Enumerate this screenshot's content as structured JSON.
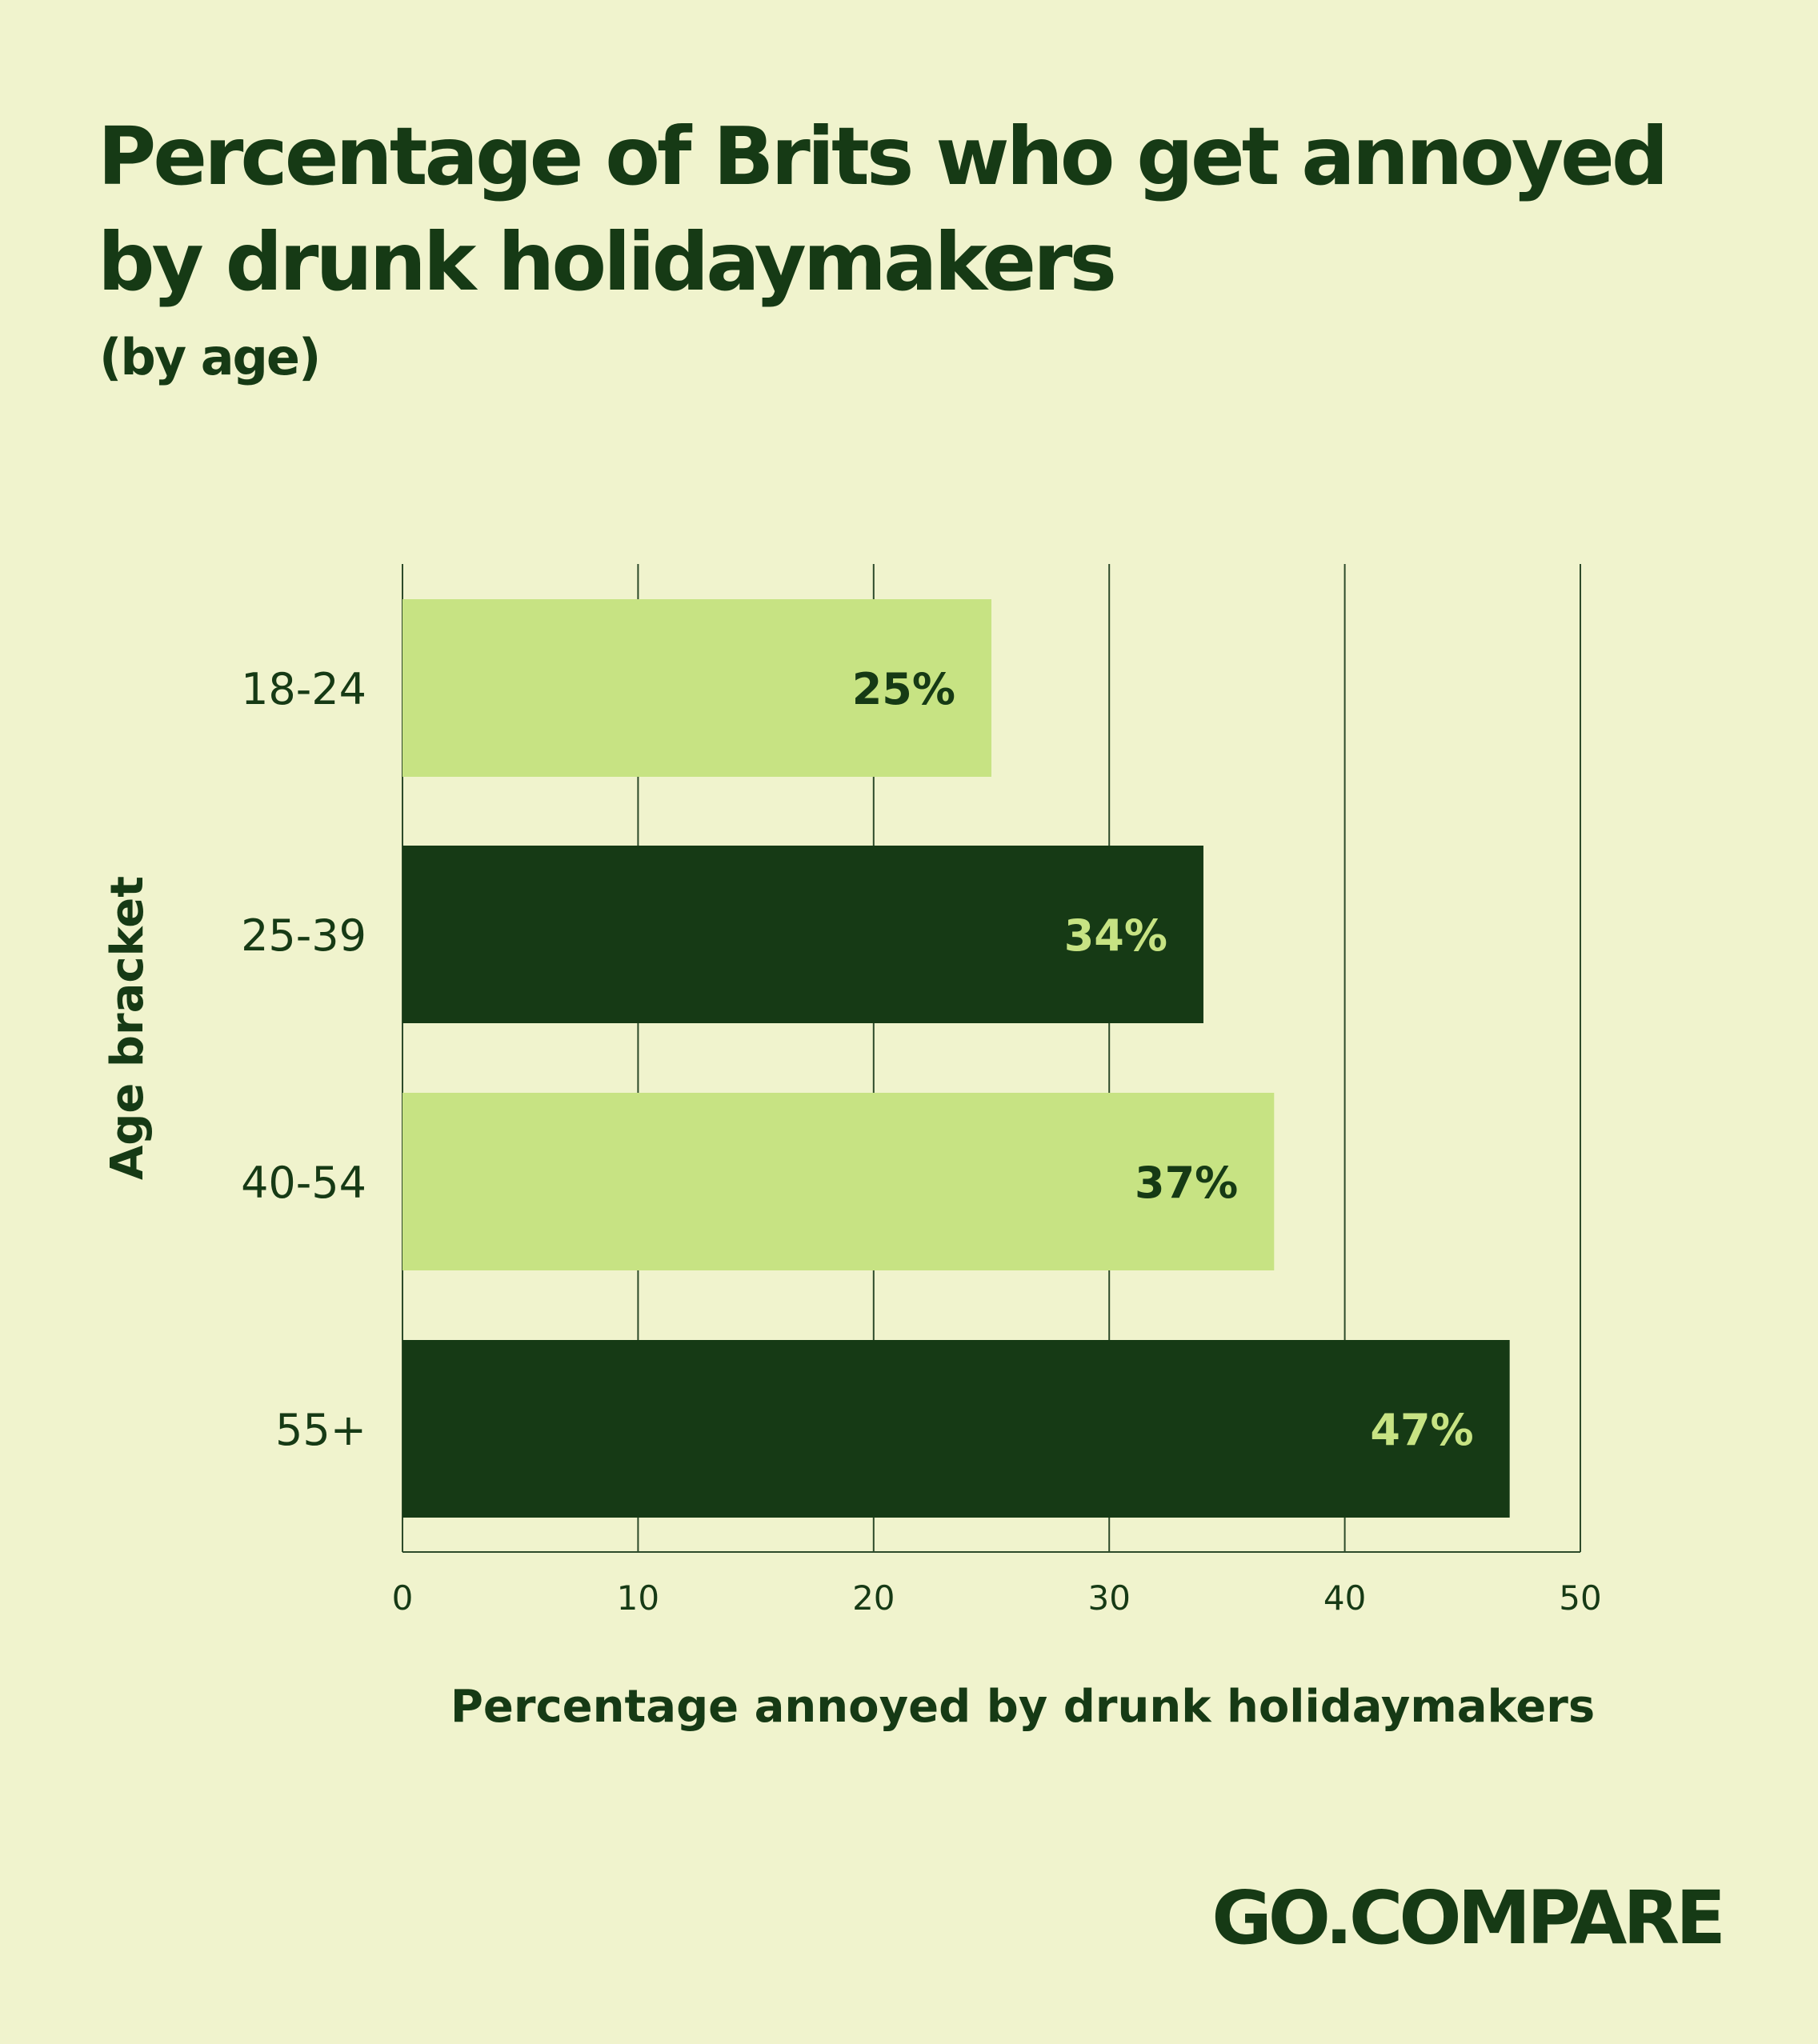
{
  "title": "Percentage of Brits who get annoyed by drunk holidaymakers",
  "subtitle": "(by age)",
  "brand": "GO.COMPARE",
  "colors": {
    "background": "#f0f3cd",
    "dark_green": "#163a15",
    "light_green": "#c7e383",
    "grid": "#2d4a2a"
  },
  "chart_data": {
    "type": "bar",
    "orientation": "horizontal",
    "categories": [
      "18-24",
      "25-39",
      "40-54",
      "55+"
    ],
    "values": [
      25,
      34,
      37,
      47
    ],
    "data_labels": [
      "25%",
      "34%",
      "37%",
      "47%"
    ],
    "bar_colors": [
      "#c7e383",
      "#163a15",
      "#c7e383",
      "#163a15"
    ],
    "label_colors": [
      "#163a15",
      "#c7e383",
      "#163a15",
      "#c7e383"
    ],
    "xlabel": "Percentage annoyed by drunk holidaymakers",
    "ylabel": "Age bracket",
    "xlim": [
      0,
      50
    ],
    "xticks": [
      0,
      10,
      20,
      30,
      40,
      50
    ],
    "xtick_labels": [
      "0",
      "10",
      "20",
      "30",
      "40",
      "50"
    ],
    "grid": true
  }
}
